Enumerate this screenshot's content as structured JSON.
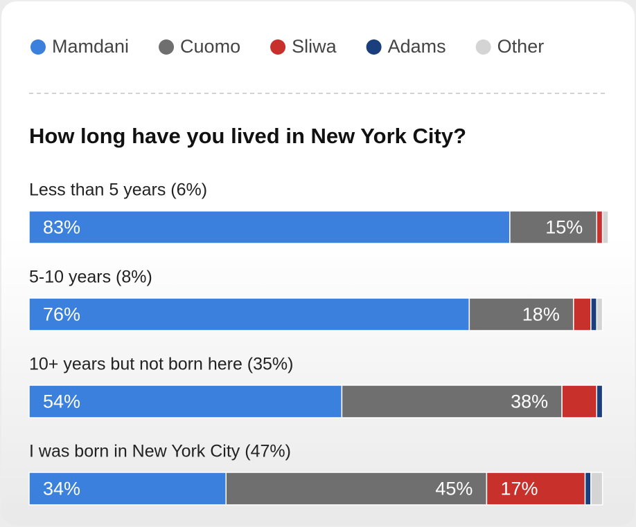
{
  "chart_data": {
    "type": "stacked-barh",
    "title": "How long have you lived in New York City?",
    "categories": [
      "Less than 5 years (6%)",
      "5-10 years (8%)",
      "10+ years but not born here (35%)",
      "I was born in New York City (47%)"
    ],
    "series": [
      {
        "name": "Mamdani",
        "color": "#3a80dc",
        "values": [
          83,
          76,
          54,
          34
        ],
        "value_labels": [
          "83%",
          "76%",
          "54%",
          "34%"
        ]
      },
      {
        "name": "Cuomo",
        "color": "#6f6f6f",
        "values": [
          15,
          18,
          38,
          45
        ],
        "value_labels": [
          "15%",
          "18%",
          "38%",
          "45%"
        ]
      },
      {
        "name": "Sliwa",
        "color": "#c8302c",
        "values": [
          1,
          3,
          6,
          17
        ],
        "value_labels": [
          null,
          null,
          null,
          "17%"
        ]
      },
      {
        "name": "Adams",
        "color": "#1b3f7c",
        "values": [
          0,
          1,
          1,
          1
        ]
      },
      {
        "name": "Other",
        "color": "#d4d4d4",
        "values": [
          1,
          1,
          0,
          2
        ]
      }
    ],
    "xlim": [
      0,
      100
    ]
  }
}
